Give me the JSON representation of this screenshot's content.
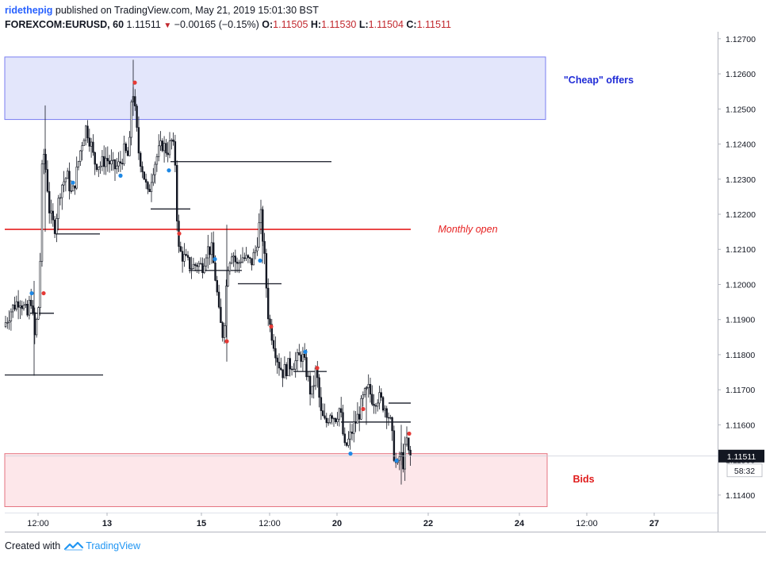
{
  "header": {
    "author": "ridethepig",
    "published": "published on TradingView.com, May 21, 2019 15:01:30 BST",
    "symbol": "FOREXCOM:EURUSD, 60",
    "last": "1.11511",
    "change": "−0.00165 (−0.15%)",
    "o_label": "O:",
    "o": "1.11505",
    "h_label": "H:",
    "h": "1.11530",
    "l_label": "L:",
    "l": "1.11504",
    "c_label": "C:",
    "c": "1.11511"
  },
  "footer": {
    "created": "Created with",
    "brand": "TradingView"
  },
  "colors": {
    "offers_fill": "#e3e6fb",
    "offers_border": "#7a7ef0",
    "bids_fill": "#fde7ea",
    "bids_border": "#e57380",
    "monthly_open": "#e62020",
    "candles": "#131722",
    "marker_red": "#e53935",
    "marker_blue": "#1e88e5",
    "price_tag": "#131722",
    "offers_text": "#1f2bd6",
    "bids_text": "#e01a1a"
  },
  "chart_data": {
    "type": "candlestick",
    "ylim": [
      1.1135,
      1.1272
    ],
    "y_ticks": [
      "1.12700",
      "1.12600",
      "1.12500",
      "1.12400",
      "1.12300",
      "1.12200",
      "1.12100",
      "1.12000",
      "1.11900",
      "1.11800",
      "1.11700",
      "1.11600",
      "1.11500",
      "1.11400"
    ],
    "y_tick_values": [
      1.127,
      1.126,
      1.125,
      1.124,
      1.123,
      1.122,
      1.121,
      1.12,
      1.119,
      1.118,
      1.117,
      1.116,
      1.115,
      1.114
    ],
    "x_ticks": [
      "12:00",
      "13",
      "15",
      "12:00",
      "20",
      "22",
      "24",
      "12:00",
      "27"
    ],
    "x_tick_slots": [
      48,
      135,
      254,
      340,
      425,
      540,
      655,
      740,
      825
    ],
    "x_range_slots": [
      6,
      905
    ],
    "last_price": "1.11511",
    "last_price_value": 1.11511,
    "countdown": "58:32",
    "zones": [
      {
        "name": "\"Cheap\" offers",
        "type": "supply",
        "top": 1.12648,
        "bottom": 1.1247,
        "x_start": 6,
        "x_end": 688
      },
      {
        "name": "Bids",
        "type": "demand",
        "top": 1.11518,
        "bottom": 1.11367,
        "x_start": 6,
        "x_end": 690
      }
    ],
    "monthly_open": {
      "label": "Monthly open",
      "value": 1.12157,
      "x_start": 6,
      "x_end": 518
    },
    "levels": [
      {
        "value": 1.11918,
        "x_start": 38,
        "x_end": 68
      },
      {
        "value": 1.11742,
        "x_start": 6,
        "x_end": 130
      },
      {
        "value": 1.12144,
        "x_start": 70,
        "x_end": 126
      },
      {
        "value": 1.1235,
        "x_start": 215,
        "x_end": 418
      },
      {
        "value": 1.12215,
        "x_start": 190,
        "x_end": 240
      },
      {
        "value": 1.1204,
        "x_start": 238,
        "x_end": 305
      },
      {
        "value": 1.12002,
        "x_start": 300,
        "x_end": 355
      },
      {
        "value": 1.11752,
        "x_start": 370,
        "x_end": 412
      },
      {
        "value": 1.11662,
        "x_start": 490,
        "x_end": 518
      },
      {
        "value": 1.11608,
        "x_start": 430,
        "x_end": 518
      }
    ],
    "path_points": [
      [
        6,
        1.1188
      ],
      [
        16,
        1.1193
      ],
      [
        26,
        1.1196
      ],
      [
        36,
        1.1191
      ],
      [
        40,
        1.1197
      ],
      [
        45,
        1.1185
      ],
      [
        51,
        1.1196
      ],
      [
        55,
        1.124
      ],
      [
        60,
        1.1231
      ],
      [
        64,
        1.122
      ],
      [
        70,
        1.1216
      ],
      [
        78,
        1.1228
      ],
      [
        86,
        1.1231
      ],
      [
        92,
        1.1225
      ],
      [
        98,
        1.1232
      ],
      [
        104,
        1.124
      ],
      [
        110,
        1.1245
      ],
      [
        116,
        1.124
      ],
      [
        120,
        1.1235
      ],
      [
        128,
        1.1234
      ],
      [
        135,
        1.1236
      ],
      [
        145,
        1.1233
      ],
      [
        152,
        1.1234
      ],
      [
        158,
        1.1238
      ],
      [
        164,
        1.1236
      ],
      [
        168,
        1.1258
      ],
      [
        172,
        1.1248
      ],
      [
        176,
        1.1238
      ],
      [
        182,
        1.1232
      ],
      [
        188,
        1.1225
      ],
      [
        194,
        1.1233
      ],
      [
        200,
        1.1237
      ],
      [
        206,
        1.124
      ],
      [
        212,
        1.1238
      ],
      [
        218,
        1.1241
      ],
      [
        222,
        1.1236
      ],
      [
        226,
        1.121
      ],
      [
        232,
        1.1208
      ],
      [
        238,
        1.1206
      ],
      [
        244,
        1.1205
      ],
      [
        250,
        1.1206
      ],
      [
        256,
        1.1205
      ],
      [
        262,
        1.121
      ],
      [
        268,
        1.121
      ],
      [
        274,
        1.12
      ],
      [
        278,
        1.119
      ],
      [
        283,
        1.1185
      ],
      [
        288,
        1.1205
      ],
      [
        294,
        1.121
      ],
      [
        300,
        1.1205
      ],
      [
        306,
        1.1208
      ],
      [
        312,
        1.1207
      ],
      [
        318,
        1.1206
      ],
      [
        324,
        1.121
      ],
      [
        330,
        1.122
      ],
      [
        334,
        1.121
      ],
      [
        340,
        1.119
      ],
      [
        346,
        1.1184
      ],
      [
        352,
        1.1178
      ],
      [
        358,
        1.1175
      ],
      [
        366,
        1.1177
      ],
      [
        374,
        1.1178
      ],
      [
        382,
        1.118
      ],
      [
        388,
        1.1175
      ],
      [
        394,
        1.1168
      ],
      [
        400,
        1.1176
      ],
      [
        406,
        1.1163
      ],
      [
        412,
        1.116
      ],
      [
        418,
        1.1164
      ],
      [
        424,
        1.1162
      ],
      [
        430,
        1.1165
      ],
      [
        436,
        1.1153
      ],
      [
        442,
        1.1156
      ],
      [
        448,
        1.116
      ],
      [
        454,
        1.1163
      ],
      [
        460,
        1.1168
      ],
      [
        466,
        1.117
      ],
      [
        472,
        1.1167
      ],
      [
        478,
        1.1168
      ],
      [
        484,
        1.1166
      ],
      [
        490,
        1.1164
      ],
      [
        494,
        1.116
      ],
      [
        498,
        1.1152
      ],
      [
        502,
        1.1147
      ],
      [
        506,
        1.1152
      ],
      [
        510,
        1.1149
      ],
      [
        514,
        1.1156
      ],
      [
        517,
        1.1151
      ]
    ],
    "markers": [
      {
        "color": "red",
        "slot": 55,
        "value": 1.11975
      },
      {
        "color": "blue",
        "slot": 40,
        "value": 1.11975
      },
      {
        "color": "red",
        "slot": 170,
        "value": 1.12575
      },
      {
        "color": "blue",
        "slot": 92,
        "value": 1.1229
      },
      {
        "color": "blue",
        "slot": 152,
        "value": 1.1231
      },
      {
        "color": "blue",
        "slot": 213,
        "value": 1.12325
      },
      {
        "color": "red",
        "slot": 226,
        "value": 1.12145
      },
      {
        "color": "blue",
        "slot": 271,
        "value": 1.12072
      },
      {
        "color": "blue",
        "slot": 328,
        "value": 1.12068
      },
      {
        "color": "red",
        "slot": 286,
        "value": 1.11838
      },
      {
        "color": "red",
        "slot": 342,
        "value": 1.1188
      },
      {
        "color": "blue",
        "slot": 385,
        "value": 1.11808
      },
      {
        "color": "red",
        "slot": 400,
        "value": 1.11762
      },
      {
        "color": "blue",
        "slot": 442,
        "value": 1.11518
      },
      {
        "color": "red",
        "slot": 458,
        "value": 1.11645
      },
      {
        "color": "blue",
        "slot": 500,
        "value": 1.11498
      },
      {
        "color": "red",
        "slot": 516,
        "value": 1.11575
      }
    ]
  }
}
